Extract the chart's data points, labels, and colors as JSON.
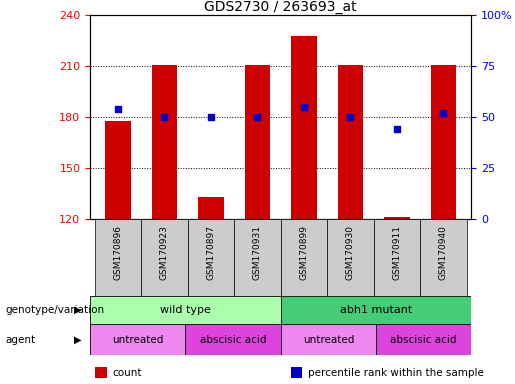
{
  "title": "GDS2730 / 263693_at",
  "samples": [
    "GSM170896",
    "GSM170923",
    "GSM170897",
    "GSM170931",
    "GSM170899",
    "GSM170930",
    "GSM170911",
    "GSM170940"
  ],
  "counts": [
    178,
    211,
    133,
    211,
    228,
    211,
    121,
    211
  ],
  "percentile_ranks": [
    54,
    50,
    50,
    50,
    55,
    50,
    44,
    52
  ],
  "ylim_left": [
    120,
    240
  ],
  "ylim_right": [
    0,
    100
  ],
  "yticks_left": [
    120,
    150,
    180,
    210,
    240
  ],
  "yticks_right": [
    0,
    25,
    50,
    75,
    100
  ],
  "bar_color": "#cc0000",
  "dot_color": "#0000cc",
  "grid_levels": [
    150,
    180,
    210
  ],
  "genotype_groups": [
    {
      "label": "wild type",
      "start": 0,
      "end": 4,
      "color": "#aaffaa"
    },
    {
      "label": "abh1 mutant",
      "start": 4,
      "end": 8,
      "color": "#44cc77"
    }
  ],
  "agent_groups": [
    {
      "label": "untreated",
      "start": 0,
      "end": 2,
      "color": "#ee88ee"
    },
    {
      "label": "abscisic acid",
      "start": 2,
      "end": 4,
      "color": "#dd44dd"
    },
    {
      "label": "untreated",
      "start": 4,
      "end": 6,
      "color": "#ee88ee"
    },
    {
      "label": "abscisic acid",
      "start": 6,
      "end": 8,
      "color": "#dd44dd"
    }
  ],
  "legend_items": [
    {
      "label": "count",
      "color": "#cc0000"
    },
    {
      "label": "percentile rank within the sample",
      "color": "#0000cc"
    }
  ],
  "label_genotype": "genotype/variation",
  "label_agent": "agent",
  "bar_width": 0.55,
  "title_fontsize": 10,
  "fig_width": 5.15,
  "fig_height": 3.84,
  "fig_dpi": 100
}
